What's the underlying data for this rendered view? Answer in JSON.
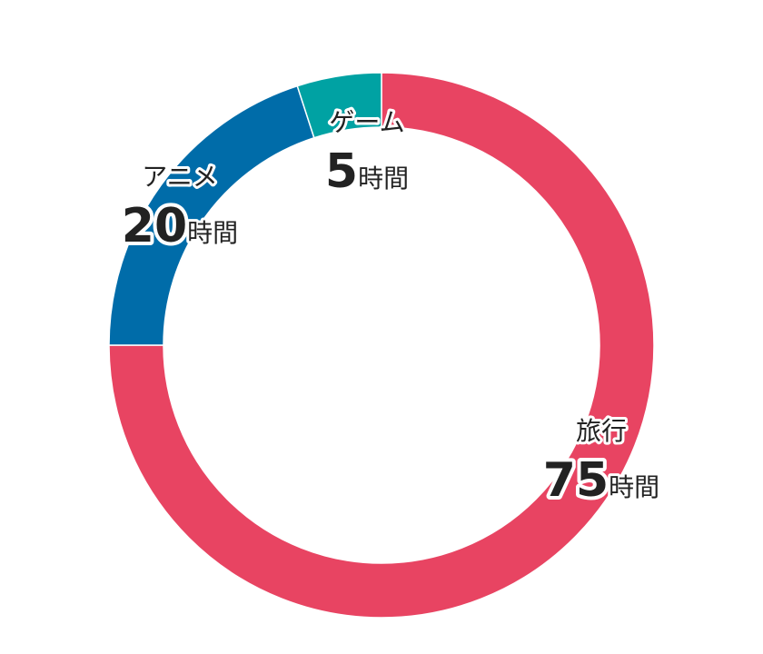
{
  "chart_data": {
    "type": "pie",
    "donut": true,
    "title": "",
    "unit": "時間",
    "slices": [
      {
        "label": "旅行",
        "value": 75,
        "color": "#e84462"
      },
      {
        "label": "アニメ",
        "value": 20,
        "color": "#006ca9"
      },
      {
        "label": "ゲーム",
        "value": 5,
        "color": "#00a2a3"
      }
    ]
  }
}
